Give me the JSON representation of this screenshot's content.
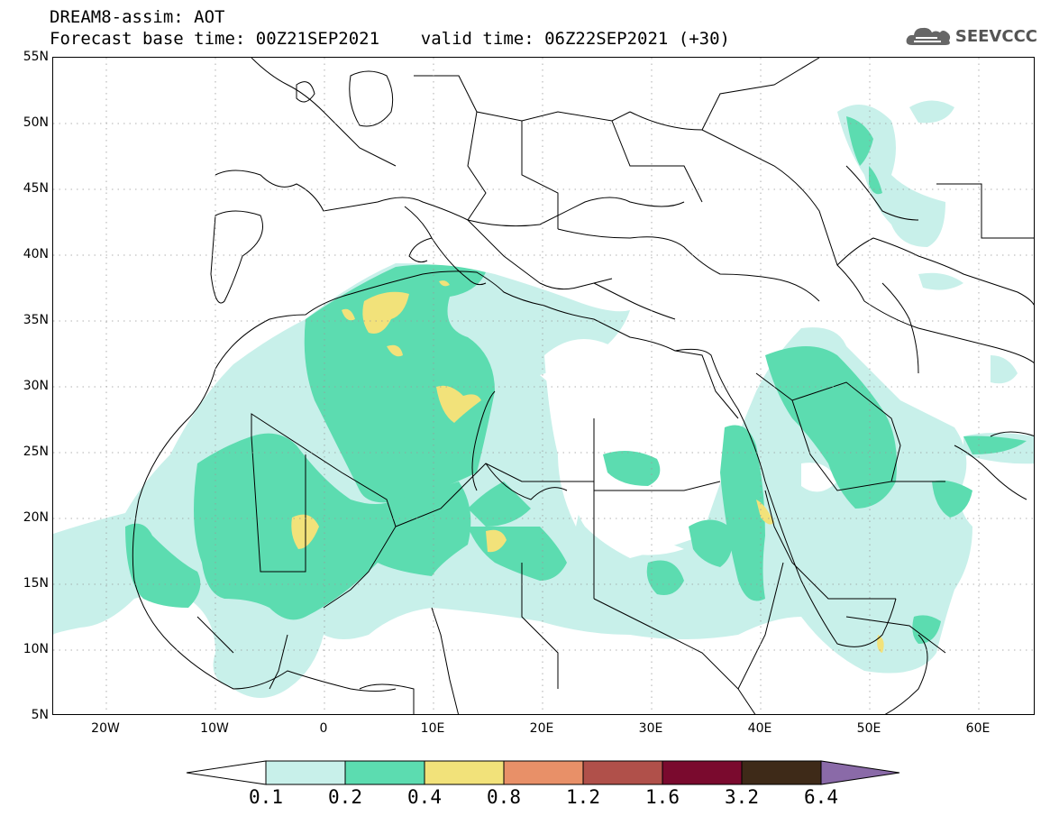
{
  "header": {
    "title_line1": "DREAM8-assim: AOT",
    "title_line2": "Forecast base time: 00Z21SEP2021    valid time: 06Z22SEP2021 (+30)"
  },
  "logo": {
    "text": "SEEVCCC",
    "icon": "cloud-icon"
  },
  "map": {
    "extent": {
      "lon_min": -25,
      "lon_max": 65,
      "lat_min": 5,
      "lat_max": 55
    },
    "grid": true,
    "lat_labels": [
      "55N",
      "50N",
      "45N",
      "40N",
      "35N",
      "30N",
      "25N",
      "20N",
      "15N",
      "10N",
      "5N"
    ],
    "lon_labels": [
      "20W",
      "10W",
      "0",
      "10E",
      "20E",
      "30E",
      "40E",
      "50E",
      "60E"
    ]
  },
  "colorbar": {
    "labels": [
      "0.1",
      "0.2",
      "0.4",
      "0.8",
      "1.2",
      "1.6",
      "3.2",
      "6.4"
    ],
    "colors": [
      "#ffffff",
      "#c8f0ea",
      "#5cdcb0",
      "#f2e27a",
      "#e89068",
      "#b0504a",
      "#7a0a2e",
      "#3e2a18",
      "#8a6aa8"
    ]
  }
}
